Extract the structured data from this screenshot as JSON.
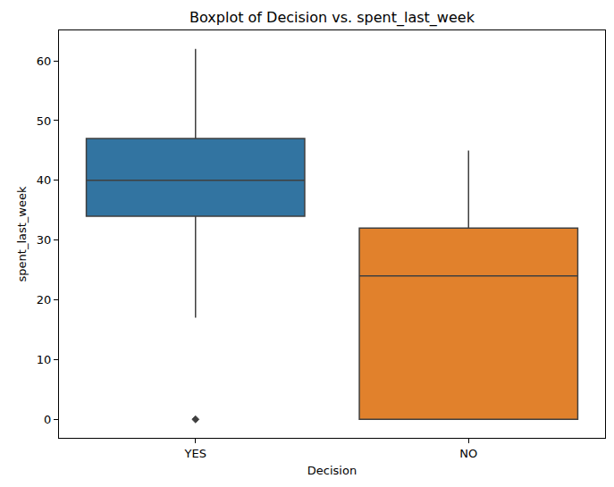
{
  "chart_data": {
    "type": "box",
    "title": "Boxplot of Decision vs. spent_last_week",
    "x_label": "Decision",
    "y_label": "spent_last_week",
    "categories": [
      "YES",
      "NO"
    ],
    "boxes": [
      {
        "lower_whisker": 17,
        "q1": 34,
        "median": 40,
        "q3": 47,
        "upper_whisker": 62,
        "outliers": [
          0
        ]
      },
      {
        "lower_whisker": 0,
        "q1": 0,
        "median": 24,
        "q3": 32,
        "upper_whisker": 45,
        "outliers": []
      }
    ],
    "colors": [
      "#3274a1",
      "#e1812c"
    ],
    "marker": "diamond",
    "ylim": [
      -3.1,
      65.1
    ],
    "yticks": [
      0,
      10,
      20,
      30,
      40,
      50,
      60
    ],
    "grid": false
  }
}
